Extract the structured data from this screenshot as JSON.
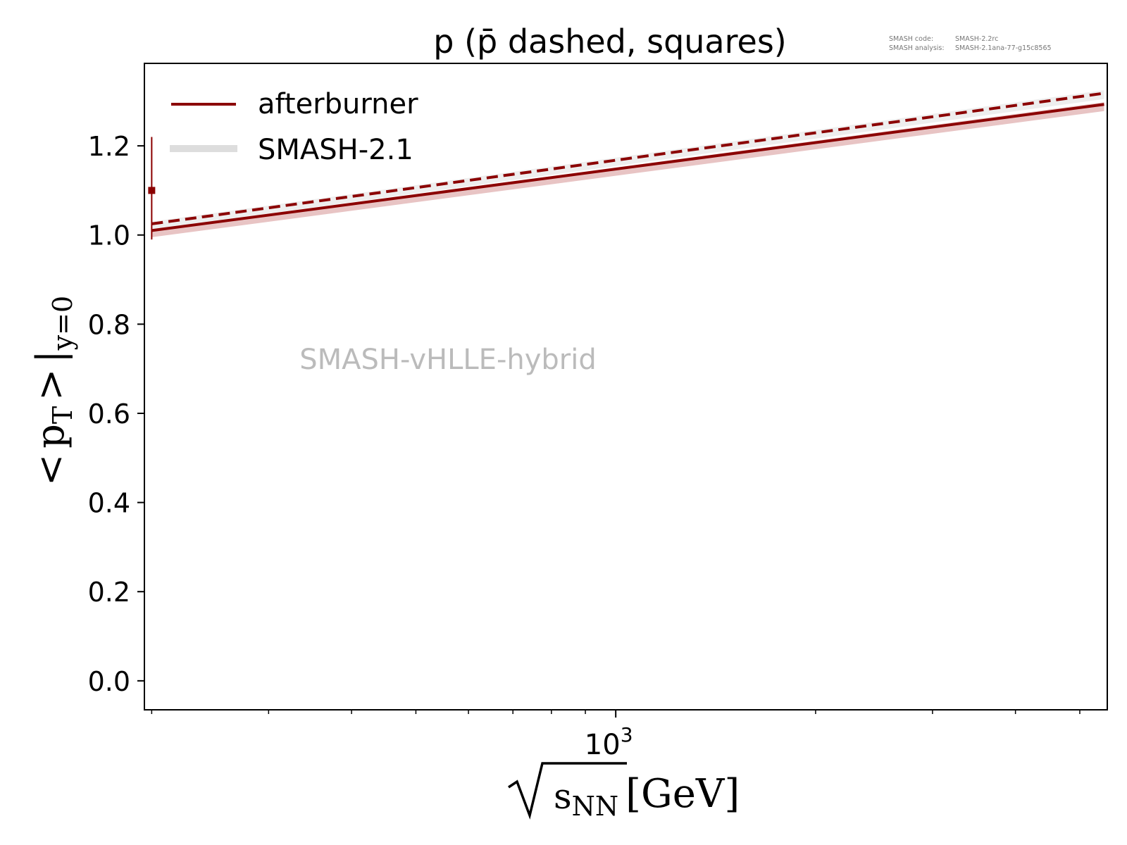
{
  "chart_data": {
    "type": "line",
    "title": "p (p̄ dashed, squares)",
    "xlabel": {
      "radical_arg": "s",
      "subscript": "NN",
      "unit": "[GeV]"
    },
    "ylabel": {
      "lt": "<",
      "p": "p",
      "p_sub": "T",
      "gt": ">",
      "bar": "|",
      "cond": "y=0"
    },
    "x_scale": "log",
    "xlim": [
      195,
      5500
    ],
    "ylim": [
      -0.065,
      1.385
    ],
    "x_tick_major": {
      "value": 1000,
      "base": "10",
      "exp": "3"
    },
    "x_ticks_minor": [
      200,
      300,
      400,
      500,
      600,
      700,
      800,
      900,
      2000,
      3000,
      4000,
      5000
    ],
    "y_ticks": [
      0.0,
      0.2,
      0.4,
      0.6,
      0.8,
      1.0,
      1.2
    ],
    "y_tick_labels": [
      "0.0",
      "0.2",
      "0.4",
      "0.6",
      "0.8",
      "1.0",
      "1.2"
    ],
    "grid": false,
    "legend_position": "top-left",
    "legend": [
      {
        "label": "afterburner",
        "style": "line",
        "color": "#8b0000"
      },
      {
        "label": "SMASH-2.1",
        "style": "band",
        "color": "#dddddd"
      }
    ],
    "series": [
      {
        "name": "afterburner",
        "kind": "line",
        "dash": false,
        "color": "#8b0000",
        "x": [
          200,
          5440
        ],
        "y": [
          1.01,
          1.293
        ]
      },
      {
        "kind": "line",
        "dash": true,
        "color": "#8b0000",
        "x": [
          200,
          5440
        ],
        "y": [
          1.025,
          1.318
        ]
      },
      {
        "name": "SMASH-2.1",
        "kind": "band",
        "color": "#e8c4c4",
        "x": [
          200,
          5440
        ],
        "y_low": [
          0.995,
          1.278
        ],
        "y_high": [
          1.012,
          1.298
        ]
      },
      {
        "kind": "band",
        "color": "#eeeeee",
        "x": [
          200,
          5440
        ],
        "y_low": [
          1.012,
          1.305
        ],
        "y_high": [
          1.03,
          1.325
        ]
      },
      {
        "kind": "points",
        "marker": "square",
        "color": "#8b0000",
        "x": [
          200
        ],
        "y": [
          1.1
        ],
        "yerr": [
          [
            0.11
          ],
          [
            0.12
          ]
        ]
      }
    ],
    "watermark": "SMASH-vHLLE-hybrid",
    "annotations": [
      {
        "label": "SMASH code:",
        "value": "SMASH-2.2rc"
      },
      {
        "label": "SMASH analysis:",
        "value": "SMASH-2.1ana-77-g15c8565"
      }
    ]
  },
  "colors": {
    "axis": "#000000",
    "series": "#8b0000",
    "band_red": "#e8c4c4",
    "band_gray": "#dddddd",
    "watermark": "#bbbbbb",
    "annotation": "#777777"
  }
}
